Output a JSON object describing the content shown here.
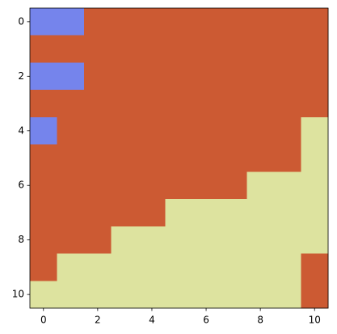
{
  "chart_data": {
    "type": "heatmap",
    "values": [
      [
        0,
        0,
        1,
        1,
        1,
        1,
        1,
        1,
        1,
        1,
        1
      ],
      [
        1,
        1,
        1,
        1,
        1,
        1,
        1,
        1,
        1,
        1,
        1
      ],
      [
        0,
        0,
        1,
        1,
        1,
        1,
        1,
        1,
        1,
        1,
        1
      ],
      [
        1,
        1,
        1,
        1,
        1,
        1,
        1,
        1,
        1,
        1,
        1
      ],
      [
        0,
        1,
        1,
        1,
        1,
        1,
        1,
        1,
        1,
        1,
        2
      ],
      [
        1,
        1,
        1,
        1,
        1,
        1,
        1,
        1,
        1,
        1,
        2
      ],
      [
        1,
        1,
        1,
        1,
        1,
        1,
        1,
        1,
        2,
        2,
        2
      ],
      [
        1,
        1,
        1,
        1,
        1,
        2,
        2,
        2,
        2,
        2,
        2
      ],
      [
        1,
        1,
        1,
        2,
        2,
        2,
        2,
        2,
        2,
        2,
        2
      ],
      [
        1,
        2,
        2,
        2,
        2,
        2,
        2,
        2,
        2,
        2,
        1
      ],
      [
        2,
        2,
        2,
        2,
        2,
        2,
        2,
        2,
        2,
        2,
        1
      ]
    ],
    "colors": [
      "#7584ec",
      "#cc5a33",
      "#dde39f"
    ],
    "xlim": [
      -0.5,
      10.5
    ],
    "ylim": [
      10.5,
      -0.5
    ],
    "xticks": [
      0,
      2,
      4,
      6,
      8,
      10
    ],
    "yticks": [
      0,
      2,
      4,
      6,
      8,
      10
    ]
  }
}
